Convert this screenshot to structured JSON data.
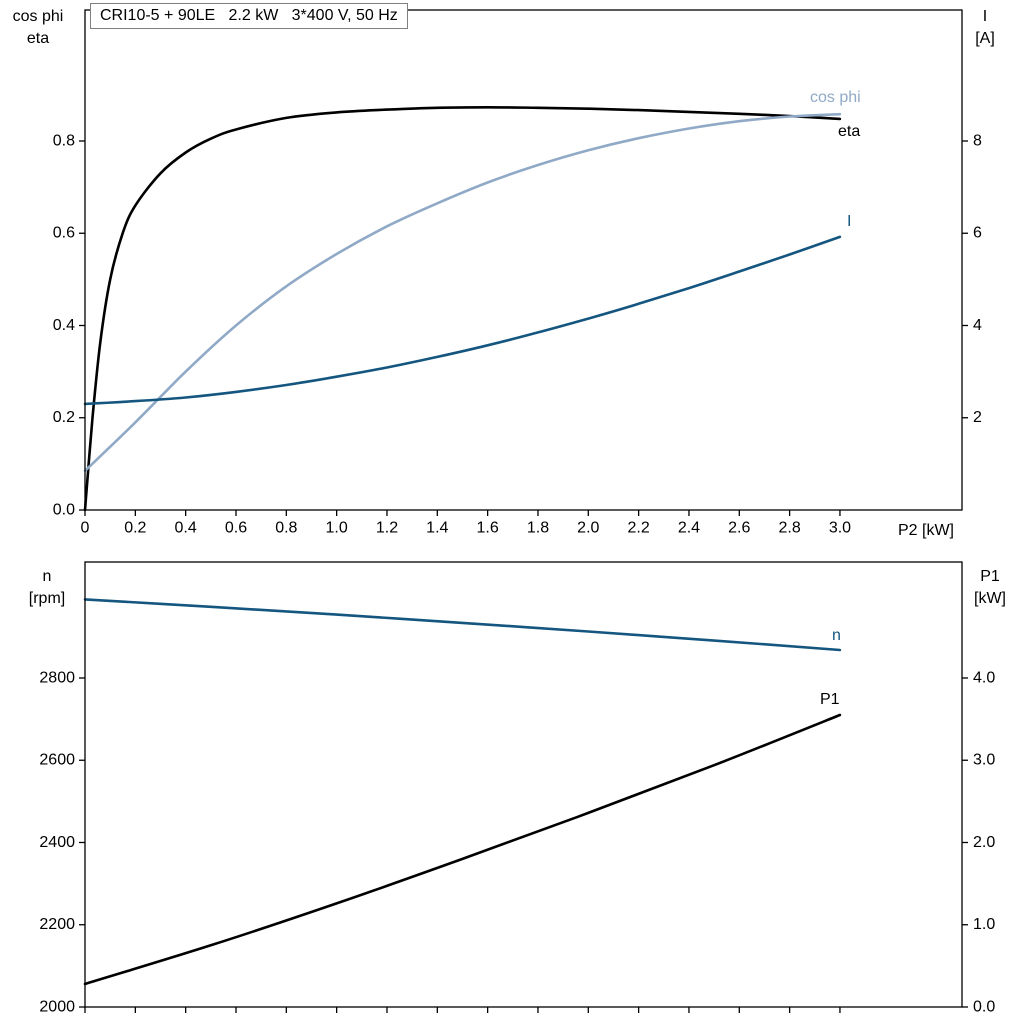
{
  "header": {
    "title": "CRI10-5 + 90LE   2.2 kW   3*400 V, 50 Hz"
  },
  "colors": {
    "black": "#000000",
    "light_blue": "#8fa9c6",
    "dark_blue": "#14567f",
    "frame": "#000000"
  },
  "chart_data": [
    {
      "type": "line",
      "name": "motor-performance",
      "x_axis": {
        "label": "P2 [kW]",
        "range": [
          0,
          3.485
        ],
        "tick_values": [
          0,
          0.2,
          0.4,
          0.6,
          0.8,
          1,
          1.2,
          1.4,
          1.6,
          1.8,
          2,
          2.2,
          2.4,
          2.6,
          2.8,
          3
        ],
        "tick_labels": [
          "0",
          "0.2",
          "0.4",
          "0.6",
          "0.8",
          "1.0",
          "1.2",
          "1.4",
          "1.6",
          "1.8",
          "2.0",
          "2.2",
          "2.4",
          "2.6",
          "2.8",
          "3.0"
        ]
      },
      "left_axis": {
        "title_lines": [
          "cos phi",
          "eta"
        ],
        "range": [
          0,
          1.084
        ],
        "tick_values": [
          0,
          0.2,
          0.4,
          0.6,
          0.8
        ],
        "tick_labels": [
          "0.0",
          "0.2",
          "0.4",
          "0.6",
          "0.8"
        ]
      },
      "right_axis": {
        "title_lines": [
          "I",
          "[A]"
        ],
        "range": [
          0,
          10.84
        ],
        "tick_values": [
          2,
          4,
          6,
          8
        ],
        "tick_labels": [
          "2",
          "4",
          "6",
          "8"
        ]
      },
      "series": [
        {
          "name": "eta",
          "label": "eta",
          "axis": "left",
          "color_key": "black",
          "x": [
            0,
            0.03,
            0.06,
            0.1,
            0.15,
            0.2,
            0.3,
            0.4,
            0.5,
            0.6,
            0.8,
            1.0,
            1.2,
            1.4,
            1.6,
            1.8,
            2.0,
            2.2,
            2.4,
            2.6,
            2.8,
            3.0
          ],
          "values": [
            0,
            0.2,
            0.36,
            0.5,
            0.6,
            0.66,
            0.73,
            0.775,
            0.805,
            0.825,
            0.85,
            0.862,
            0.868,
            0.872,
            0.873,
            0.872,
            0.87,
            0.867,
            0.863,
            0.859,
            0.854,
            0.848
          ]
        },
        {
          "name": "cos-phi",
          "label": "cos phi",
          "axis": "left",
          "color_key": "light_blue",
          "x": [
            0,
            0.2,
            0.4,
            0.6,
            0.8,
            1.0,
            1.2,
            1.4,
            1.6,
            1.8,
            2.0,
            2.2,
            2.4,
            2.6,
            2.8,
            3.0
          ],
          "values": [
            0.085,
            0.19,
            0.3,
            0.4,
            0.485,
            0.555,
            0.615,
            0.665,
            0.71,
            0.748,
            0.78,
            0.806,
            0.827,
            0.843,
            0.853,
            0.858
          ]
        },
        {
          "name": "I",
          "label": "I",
          "axis": "right",
          "color_key": "dark_blue",
          "x": [
            0,
            0.2,
            0.4,
            0.6,
            0.8,
            1.0,
            1.2,
            1.4,
            1.6,
            1.8,
            2.0,
            2.2,
            2.4,
            2.6,
            2.8,
            3.0
          ],
          "values": [
            2.3,
            2.36,
            2.44,
            2.56,
            2.71,
            2.89,
            3.09,
            3.32,
            3.57,
            3.85,
            4.15,
            4.47,
            4.81,
            5.17,
            5.54,
            5.92
          ]
        }
      ]
    },
    {
      "type": "line",
      "name": "speed-power",
      "x_axis": {
        "label": "",
        "range": [
          0,
          3.485
        ],
        "tick_values": [
          0,
          0.2,
          0.4,
          0.6,
          0.8,
          1,
          1.2,
          1.4,
          1.6,
          1.8,
          2,
          2.2,
          2.4,
          2.6,
          2.8,
          3
        ],
        "tick_labels": []
      },
      "left_axis": {
        "title_lines": [
          "n",
          "[rpm]"
        ],
        "range": [
          2000,
          3082
        ],
        "tick_values": [
          2000,
          2200,
          2400,
          2600,
          2800
        ],
        "tick_labels": [
          "2000",
          "2200",
          "2400",
          "2600",
          "2800"
        ]
      },
      "right_axis": {
        "title_lines": [
          "P1",
          "[kW]"
        ],
        "range": [
          0,
          5.41
        ],
        "tick_values": [
          0,
          1,
          2,
          3,
          4
        ],
        "tick_labels": [
          "0.0",
          "1.0",
          "2.0",
          "3.0",
          "4.0"
        ]
      },
      "series": [
        {
          "name": "n",
          "label": "n",
          "axis": "left",
          "color_key": "dark_blue",
          "x": [
            0,
            0.5,
            1.0,
            1.5,
            2.0,
            2.5,
            3.0
          ],
          "values": [
            2991,
            2973,
            2954,
            2934,
            2913,
            2891,
            2868
          ]
        },
        {
          "name": "P1",
          "label": "P1",
          "axis": "right",
          "color_key": "black",
          "x": [
            0,
            0.5,
            1.0,
            1.5,
            2.0,
            2.5,
            3.0
          ],
          "values": [
            0.28,
            0.75,
            1.26,
            1.8,
            2.36,
            2.94,
            3.55
          ]
        }
      ]
    }
  ]
}
